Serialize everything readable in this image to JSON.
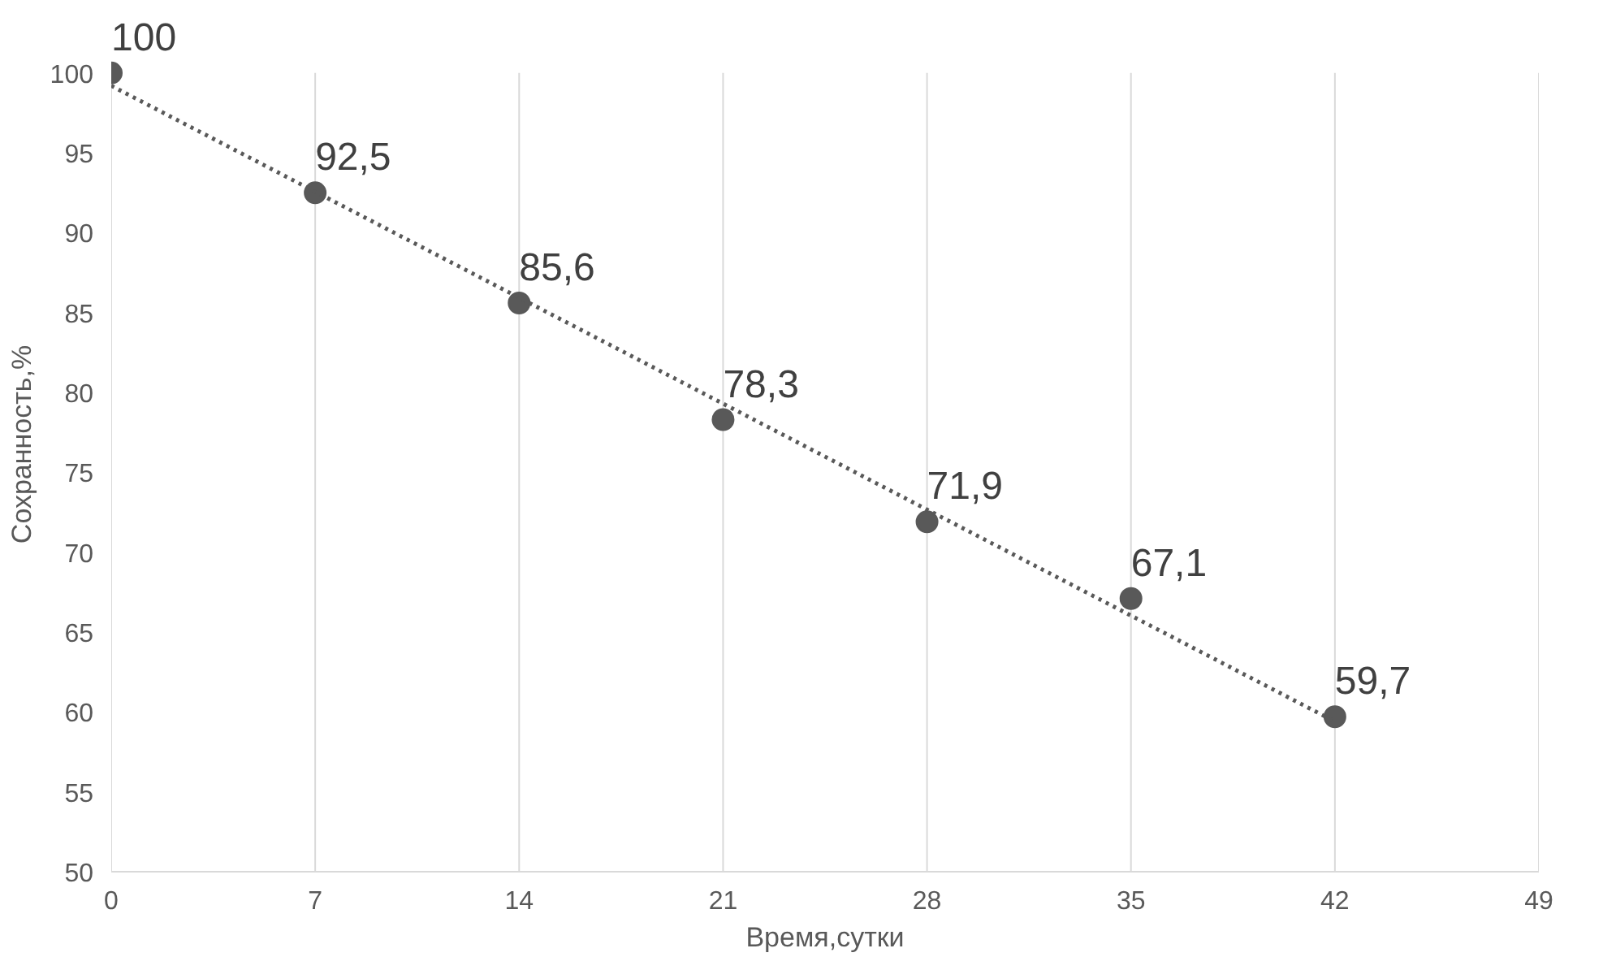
{
  "chart_data": {
    "type": "scatter",
    "xlabel": "Время,сутки",
    "ylabel": "Сохранность,%",
    "xlim": [
      0,
      49
    ],
    "xticks": [
      0,
      7,
      14,
      21,
      28,
      35,
      42,
      49
    ],
    "ylim": [
      50,
      100
    ],
    "yticks": [
      50,
      55,
      60,
      65,
      70,
      75,
      80,
      85,
      90,
      95,
      100
    ],
    "grid": "x",
    "marker": "circle",
    "series": [
      {
        "color": "#595959",
        "x": [
          0,
          7,
          14,
          21,
          28,
          35,
          42
        ],
        "values": [
          100,
          92.5,
          85.6,
          78.3,
          71.9,
          67.1,
          59.7
        ],
        "value_labels": [
          "100",
          "92,5",
          "85,6",
          "78,3",
          "71,9",
          "67,1",
          "59,7"
        ]
      },
      {
        "type": "line",
        "color": "#595959",
        "line_style": "dotted",
        "marker": "none",
        "x": [
          0,
          42
        ],
        "values": [
          99.2,
          59.4
        ]
      }
    ]
  }
}
